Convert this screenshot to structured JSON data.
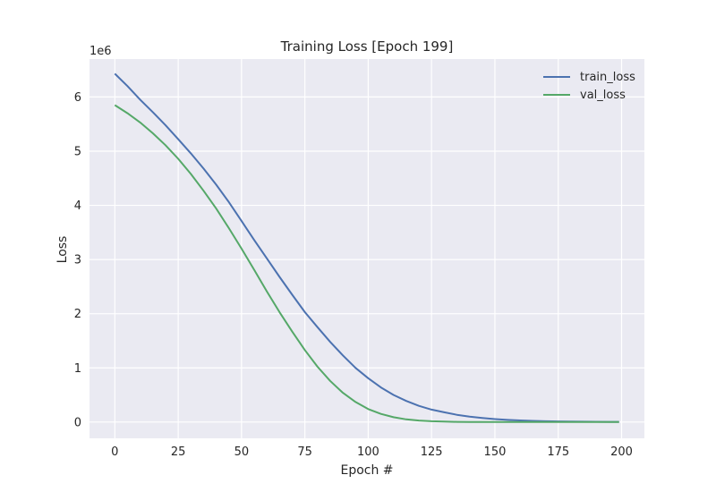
{
  "chart_data": {
    "type": "line",
    "title": "Training Loss [Epoch 199]",
    "xlabel": "Epoch #",
    "ylabel": "Loss",
    "y_offset_label": "1e6",
    "y_multiplier": 1000000,
    "xlim": [
      -10,
      209
    ],
    "ylim": [
      -300000,
      6700000
    ],
    "x_ticks": [
      0,
      25,
      50,
      75,
      100,
      125,
      150,
      175,
      200
    ],
    "y_ticks": [
      0,
      1000000,
      2000000,
      3000000,
      4000000,
      5000000,
      6000000
    ],
    "y_tick_labels": [
      "0",
      "1",
      "2",
      "3",
      "4",
      "5",
      "6"
    ],
    "x_tick_labels": [
      "0",
      "25",
      "50",
      "75",
      "100",
      "125",
      "150",
      "175",
      "200"
    ],
    "grid": true,
    "background": "#eaeaf2",
    "legend_position": "top-right",
    "series": [
      {
        "name": "train_loss",
        "color": "#4c72b0",
        "x": [
          0,
          5,
          10,
          15,
          20,
          25,
          30,
          35,
          40,
          45,
          50,
          55,
          60,
          65,
          70,
          75,
          80,
          85,
          90,
          95,
          100,
          105,
          110,
          115,
          120,
          125,
          130,
          135,
          140,
          145,
          150,
          155,
          160,
          165,
          170,
          175,
          180,
          185,
          190,
          195,
          199
        ],
        "y": [
          6430000,
          6200000,
          5950000,
          5720000,
          5480000,
          5220000,
          4960000,
          4680000,
          4380000,
          4060000,
          3710000,
          3360000,
          3020000,
          2680000,
          2350000,
          2030000,
          1750000,
          1480000,
          1230000,
          1000000,
          810000,
          640000,
          500000,
          390000,
          300000,
          230000,
          180000,
          135000,
          100000,
          75000,
          55000,
          40000,
          30000,
          22000,
          16000,
          12000,
          9000,
          7000,
          5000,
          4000,
          3000
        ]
      },
      {
        "name": "val_loss",
        "color": "#55a868",
        "x": [
          0,
          5,
          10,
          15,
          20,
          25,
          30,
          35,
          40,
          45,
          50,
          55,
          60,
          65,
          70,
          75,
          80,
          85,
          90,
          95,
          100,
          105,
          110,
          115,
          120,
          125,
          130,
          135,
          140,
          145,
          150,
          155,
          160,
          165,
          170,
          175,
          180,
          185,
          190,
          195,
          199
        ],
        "y": [
          5850000,
          5700000,
          5530000,
          5330000,
          5110000,
          4860000,
          4580000,
          4270000,
          3940000,
          3580000,
          3200000,
          2810000,
          2410000,
          2030000,
          1670000,
          1330000,
          1020000,
          760000,
          540000,
          370000,
          240000,
          150000,
          90000,
          50000,
          28000,
          15000,
          8000,
          4000,
          2000,
          1000,
          0,
          0,
          0,
          0,
          0,
          0,
          0,
          0,
          0,
          0,
          0
        ]
      }
    ]
  }
}
